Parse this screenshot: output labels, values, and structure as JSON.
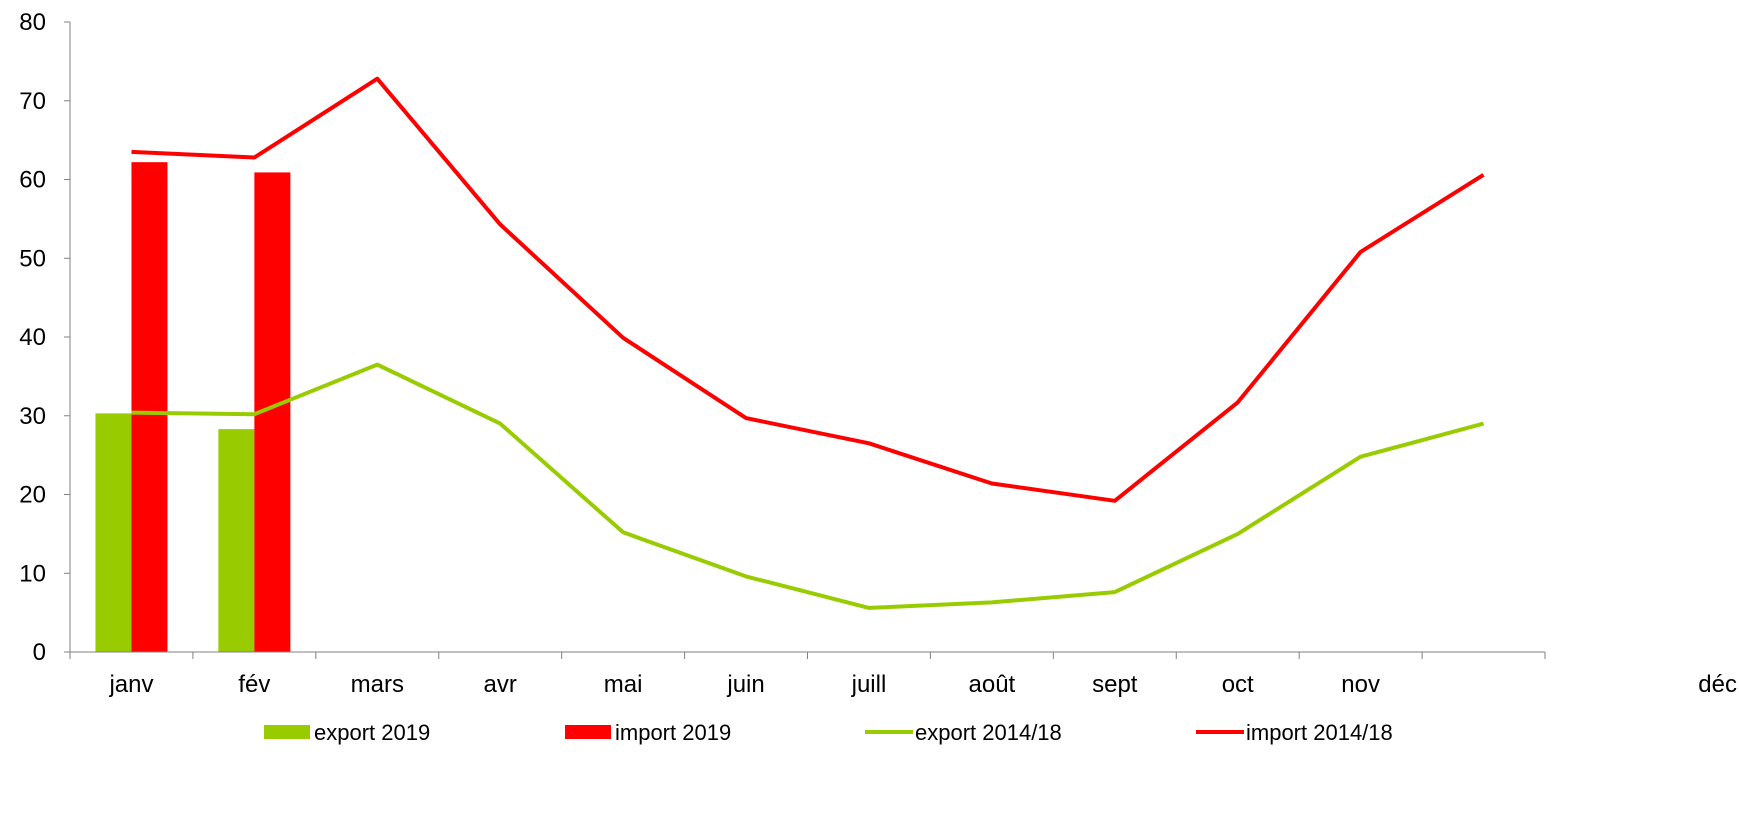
{
  "chart_data": {
    "type": "bar",
    "categories": [
      "janv",
      "fév",
      "mars",
      "avr",
      "mai",
      "juin",
      "juill",
      "août",
      "sept",
      "oct",
      "nov",
      "déc"
    ],
    "ylim": [
      0,
      80
    ],
    "yticks": [
      0,
      10,
      20,
      30,
      40,
      50,
      60,
      70,
      80
    ],
    "grid": false,
    "legend_position": "bottom",
    "colors": {
      "export": "#99cc00",
      "import": "#ff0000"
    },
    "bar_series": [
      {
        "name": "export 2019",
        "color": "#99cc00",
        "values": [
          30.3,
          28.3,
          null,
          null,
          null,
          null,
          null,
          null,
          null,
          null,
          null,
          null
        ]
      },
      {
        "name": "import 2019",
        "color": "#ff0000",
        "values": [
          62.2,
          60.9,
          null,
          null,
          null,
          null,
          null,
          null,
          null,
          null,
          null,
          null
        ]
      }
    ],
    "line_series": [
      {
        "name": "export 2014/18",
        "color": "#99cc00",
        "values": [
          30.4,
          30.2,
          36.5,
          29.0,
          15.2,
          9.6,
          5.6,
          6.3,
          7.6,
          15.0,
          24.8,
          29.0
        ]
      },
      {
        "name": "import 2014/18",
        "color": "#ff0000",
        "values": [
          63.5,
          62.8,
          72.8,
          54.3,
          39.9,
          29.7,
          26.5,
          21.4,
          19.2,
          31.7,
          50.8,
          60.6
        ]
      }
    ]
  }
}
